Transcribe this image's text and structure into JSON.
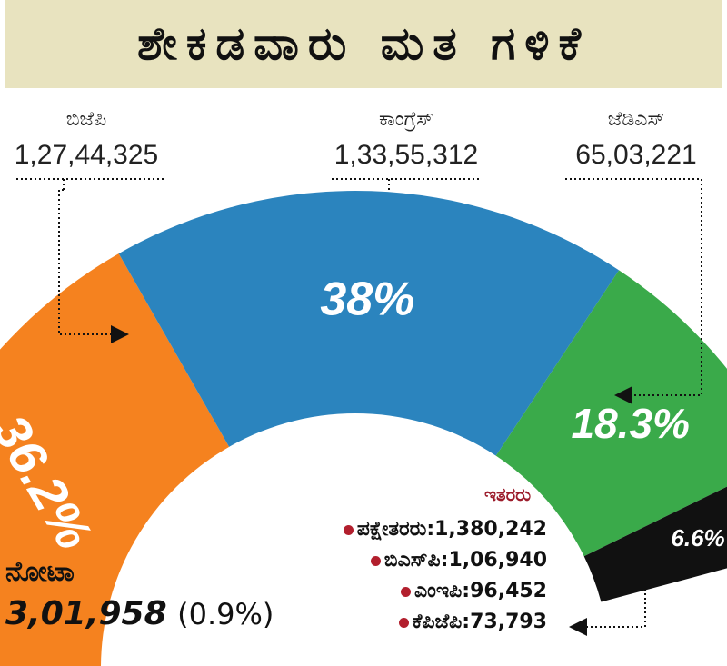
{
  "title": "ಶೇಕಡವಾರು ಮತ ಗಳಿಕೆ",
  "colors": {
    "bjp": "#f5821f",
    "congress": "#2b84be",
    "jds": "#3aaa4a",
    "others": "#111111",
    "title_bg": "#e8e3bf",
    "bullet": "#b21f2d"
  },
  "chart_data": {
    "type": "pie",
    "subtype": "half-donut",
    "slices": [
      {
        "label": "ಬಿಜೆಪಿ",
        "votes": "1,27,44,325",
        "percent": 36.2,
        "percent_label": "36.2%",
        "color": "#f5821f"
      },
      {
        "label": "ಕಾಂಗ್ರೆಸ್",
        "votes": "1,33,55,312",
        "percent": 38,
        "percent_label": "38%",
        "color": "#2b84be"
      },
      {
        "label": "ಜೆಡಿಎಸ್",
        "votes": "65,03,221",
        "percent": 18.3,
        "percent_label": "18.3%",
        "color": "#3aaa4a"
      },
      {
        "label": "ಇತರರು",
        "percent": 6.6,
        "percent_label": "6.6%",
        "color": "#111111"
      }
    ],
    "others": {
      "title": "ಇತರರು",
      "items": [
        {
          "label": "ಪಕ್ಷೇತರರು",
          "value": "1,380,242"
        },
        {
          "label": "ಬಿಎಸ್‌ಪಿ",
          "value": "1,06,940"
        },
        {
          "label": "ಎಂಇಪಿ",
          "value": "96,452"
        },
        {
          "label": "ಕೆಪಿಜೆಪಿ",
          "value": "73,793"
        }
      ]
    },
    "nota": {
      "label": "ನೋಟಾ",
      "value": "3,01,958",
      "percent_label": "(0.9%)"
    }
  }
}
